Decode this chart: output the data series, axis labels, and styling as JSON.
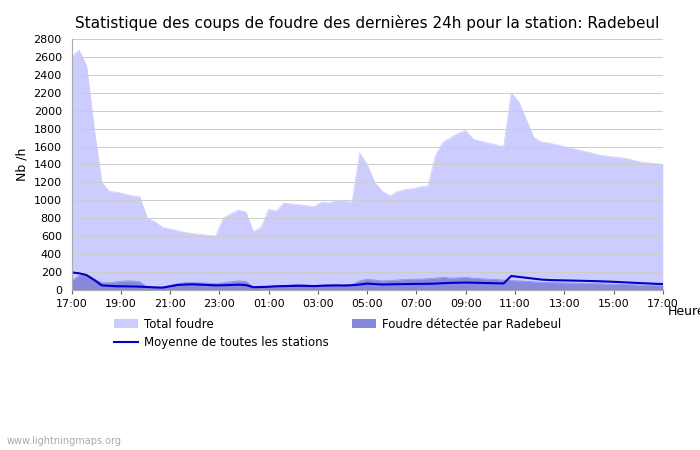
{
  "title": "Statistique des coups de foudre des dernières 24h pour la station: Radebeul",
  "xlabel": "Heure",
  "ylabel": "Nb /h",
  "ylim": [
    0,
    2800
  ],
  "yticks": [
    0,
    200,
    400,
    600,
    800,
    1000,
    1200,
    1400,
    1600,
    1800,
    2000,
    2200,
    2400,
    2600,
    2800
  ],
  "xtick_labels": [
    "17:00",
    "19:00",
    "21:00",
    "23:00",
    "01:00",
    "03:00",
    "05:00",
    "07:00",
    "09:00",
    "11:00",
    "13:00",
    "15:00",
    "17:00"
  ],
  "background_color": "#ffffff",
  "plot_bg_color": "#ffffff",
  "grid_color": "#cccccc",
  "total_foudre_color": "#ccccff",
  "radebeul_color": "#8888dd",
  "moyenne_color": "#0000cc",
  "watermark": "www.lightningmaps.org",
  "legend_total": "Total foudre",
  "legend_moyenne": "Moyenne de toutes les stations",
  "legend_radebeul": "Foudre détectée par Radebeul",
  "total_foudre": [
    2600,
    2680,
    2500,
    1800,
    1200,
    1100,
    1090,
    1070,
    1050,
    1040,
    800,
    760,
    700,
    680,
    660,
    640,
    630,
    620,
    610,
    600,
    800,
    850,
    890,
    870,
    650,
    700,
    900,
    880,
    970,
    960,
    950,
    940,
    930,
    980,
    970,
    1000,
    990,
    980,
    1530,
    1400,
    1200,
    1100,
    1050,
    1100,
    1120,
    1130,
    1150,
    1160,
    1500,
    1650,
    1700,
    1750,
    1780,
    1680,
    1660,
    1640,
    1620,
    1600,
    2200,
    2100,
    1900,
    1700,
    1650,
    1640,
    1620,
    1600,
    1580,
    1560,
    1540,
    1520,
    1500,
    1490,
    1480,
    1470,
    1450,
    1430,
    1420,
    1410,
    1400
  ],
  "radebeul": [
    100,
    160,
    170,
    120,
    80,
    80,
    90,
    100,
    100,
    90,
    30,
    25,
    30,
    50,
    70,
    80,
    85,
    80,
    75,
    70,
    80,
    90,
    100,
    95,
    30,
    35,
    40,
    45,
    50,
    55,
    60,
    55,
    50,
    55,
    60,
    60,
    58,
    60,
    100,
    120,
    110,
    100,
    105,
    110,
    115,
    120,
    120,
    125,
    130,
    140,
    130,
    135,
    140,
    130,
    125,
    120,
    115,
    110,
    105,
    100,
    95,
    90,
    85,
    82,
    80,
    78,
    76,
    74,
    72,
    70,
    68,
    65,
    62,
    60,
    58,
    55,
    52,
    50,
    48
  ],
  "moyenne": [
    195,
    185,
    165,
    110,
    50,
    45,
    40,
    40,
    38,
    36,
    32,
    28,
    25,
    40,
    55,
    60,
    62,
    58,
    55,
    50,
    52,
    55,
    58,
    54,
    30,
    32,
    35,
    40,
    42,
    44,
    46,
    44,
    42,
    46,
    48,
    50,
    48,
    52,
    60,
    70,
    65,
    60,
    62,
    64,
    65,
    66,
    67,
    68,
    70,
    75,
    78,
    80,
    82,
    80,
    78,
    76,
    74,
    72,
    155,
    145,
    135,
    125,
    115,
    110,
    108,
    106,
    104,
    102,
    100,
    98,
    95,
    92,
    88,
    84,
    80,
    76,
    72,
    68,
    65
  ]
}
